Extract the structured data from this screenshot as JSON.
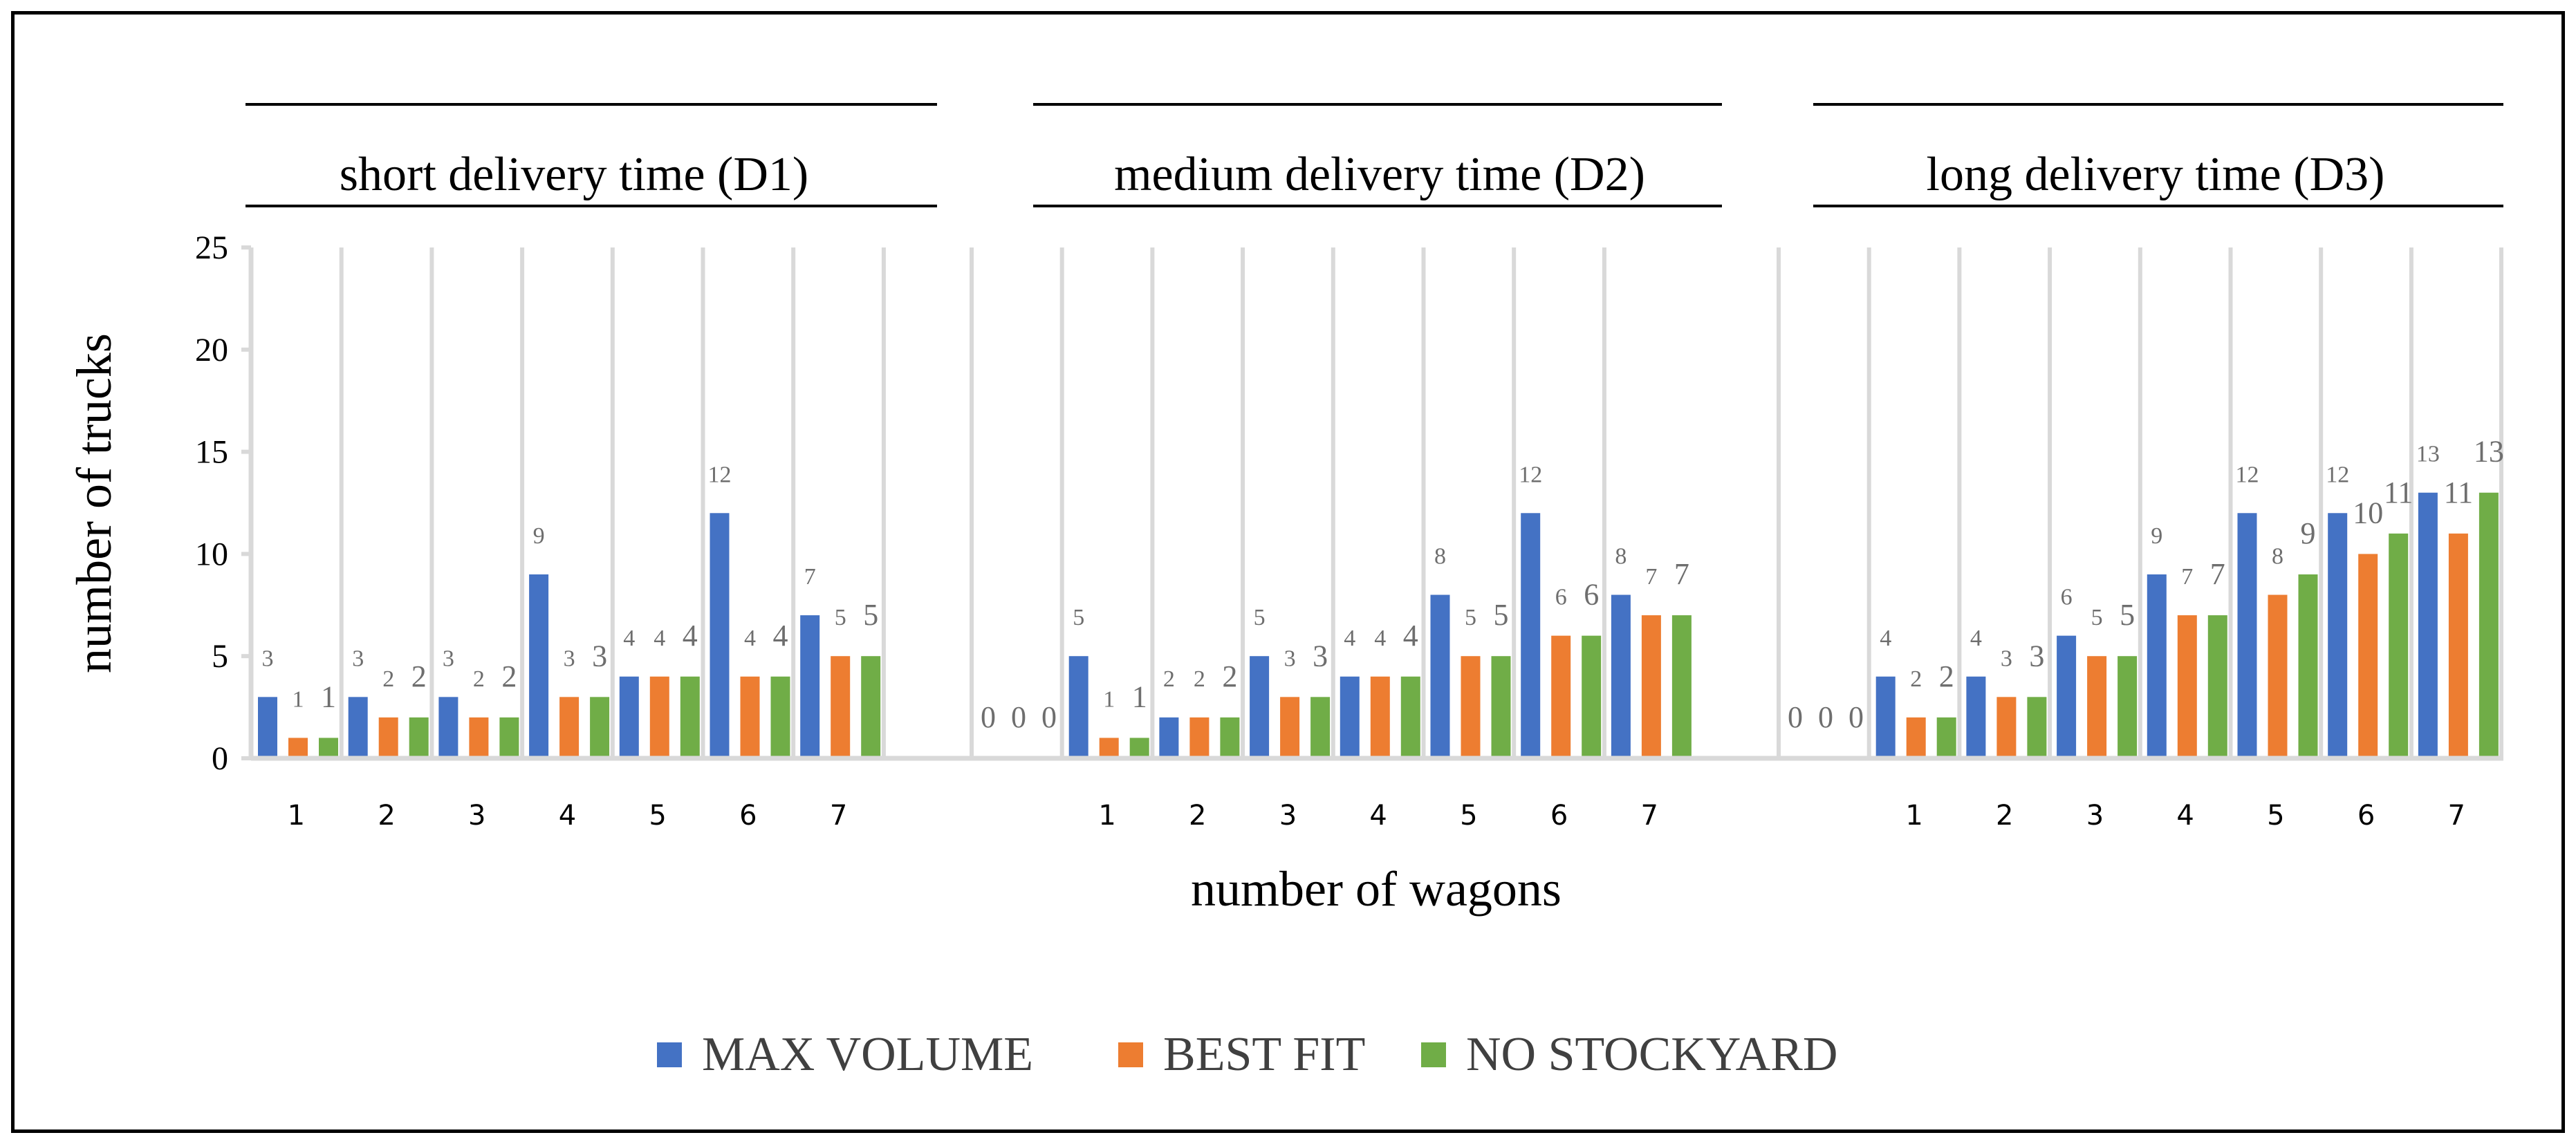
{
  "chart_data": {
    "type": "bar",
    "ylabel": "number of trucks",
    "xlabel": "number of wagons",
    "ylim": [
      0,
      25
    ],
    "yticks": [
      "0",
      "5",
      "10",
      "15",
      "20",
      "25"
    ],
    "legend_position": "bottom",
    "colors": {
      "max_volume": "#4472c4",
      "best_fit": "#ed7d31",
      "no_stockyard": "#70ad47"
    },
    "series_names": [
      "MAX VOLUME",
      "BEST FIT",
      "NO STOCKYARD"
    ],
    "panels": [
      {
        "title": "short delivery time (D1)",
        "categories": [
          "1",
          "2",
          "3",
          "4",
          "5",
          "6",
          "7"
        ],
        "series": [
          {
            "name": "MAX VOLUME",
            "values": [
              3,
              3,
              3,
              9,
              4,
              12,
              7
            ]
          },
          {
            "name": "BEST FIT",
            "values": [
              1,
              2,
              2,
              3,
              4,
              4,
              5
            ]
          },
          {
            "name": "NO STOCKYARD",
            "values": [
              1,
              2,
              2,
              3,
              4,
              4,
              5
            ]
          }
        ]
      },
      {
        "title": "medium delivery time (D2)",
        "categories": [
          "",
          "1",
          "2",
          "3",
          "4",
          "5",
          "6",
          "7"
        ],
        "series": [
          {
            "name": "MAX VOLUME",
            "values": [
              0,
              5,
              2,
              5,
              4,
              8,
              12,
              8
            ]
          },
          {
            "name": "BEST FIT",
            "values": [
              0,
              1,
              2,
              3,
              4,
              5,
              6,
              7
            ]
          },
          {
            "name": "NO STOCKYARD",
            "values": [
              0,
              1,
              2,
              3,
              4,
              5,
              6,
              7
            ]
          }
        ]
      },
      {
        "title": "long delivery time (D3)",
        "categories": [
          "",
          "1",
          "2",
          "3",
          "4",
          "5",
          "6",
          "7"
        ],
        "series": [
          {
            "name": "MAX VOLUME",
            "values": [
              0,
              4,
              4,
              6,
              9,
              12,
              12,
              13
            ]
          },
          {
            "name": "BEST FIT",
            "values": [
              0,
              2,
              3,
              5,
              7,
              8,
              10,
              11
            ]
          },
          {
            "name": "NO STOCKYARD",
            "values": [
              0,
              2,
              3,
              5,
              7,
              9,
              11,
              13
            ]
          }
        ]
      }
    ]
  }
}
